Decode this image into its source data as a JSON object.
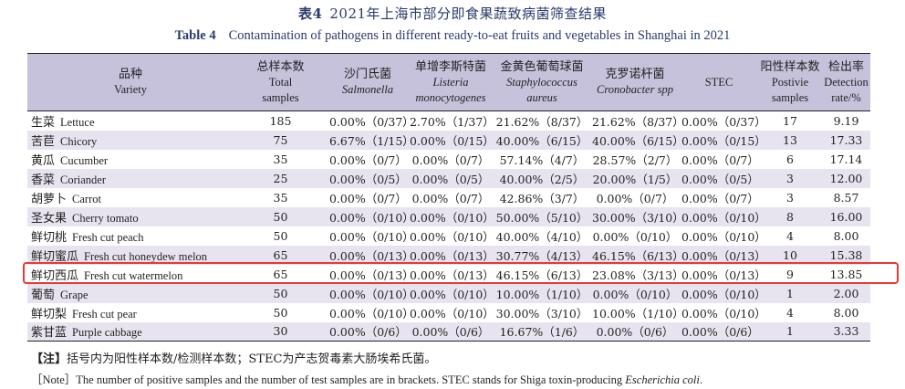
{
  "title_cn": {
    "label": "表4",
    "text": "2021年上海市部分即食果蔬致病菌筛查结果"
  },
  "title_en": {
    "label": "Table 4",
    "text": "Contamination of pathogens in different ready-to-eat fruits and vegetables in Shanghai in 2021"
  },
  "headers": {
    "variety": {
      "cn": "品种",
      "en": "Variety"
    },
    "total": {
      "cn": "总样本数",
      "en1": "Total",
      "en2": "samples"
    },
    "salmonella": {
      "cn": "沙门氏菌",
      "en": "Salmonella"
    },
    "listeria": {
      "cn": "单增李斯特菌",
      "en1": "Listeria",
      "en2": "monocytogenes"
    },
    "staph": {
      "cn": "金黄色葡萄球菌",
      "en1": "Staphylococcus",
      "en2": "aureus"
    },
    "crono": {
      "cn": "克罗诺杆菌",
      "en": "Cronobacter spp"
    },
    "stec": {
      "en": "STEC"
    },
    "positive": {
      "cn": "阳性样本数",
      "en1": "Postivie",
      "en2": "samples"
    },
    "rate": {
      "cn": "检出率",
      "en1": "Detection",
      "en2": "rate/%"
    }
  },
  "rows": [
    {
      "cn": "生菜",
      "en": "Lettuce",
      "total": "185",
      "salmonella": "0.00%（0/37）",
      "listeria": "2.70%（1/37）",
      "staph": "21.62%（8/37）",
      "crono": "21.62%（8/37）",
      "stec": "0.00%（0/37）",
      "positive": "17",
      "rate": "9.19"
    },
    {
      "cn": "苦苣",
      "en": "Chicory",
      "total": "75",
      "salmonella": "6.67%（1/15）",
      "listeria": "0.00%（0/15）",
      "staph": "40.00%（6/15）",
      "crono": "40.00%（6/15）",
      "stec": "0.00%（0/15）",
      "positive": "13",
      "rate": "17.33"
    },
    {
      "cn": "黄瓜",
      "en": "Cucumber",
      "total": "35",
      "salmonella": "0.00%（0/7）",
      "listeria": "0.00%（0/7）",
      "staph": "57.14%（4/7）",
      "crono": "28.57%（2/7）",
      "stec": "0.00%（0/7）",
      "positive": "6",
      "rate": "17.14"
    },
    {
      "cn": "香菜",
      "en": "Coriander",
      "total": "25",
      "salmonella": "0.00%（0/5）",
      "listeria": "0.00%（0/5）",
      "staph": "40.00%（2/5）",
      "crono": "20.00%（1/5）",
      "stec": "0.00%（0/5）",
      "positive": "3",
      "rate": "12.00"
    },
    {
      "cn": "胡萝卜",
      "en": "Carrot",
      "total": "35",
      "salmonella": "0.00%（0/7）",
      "listeria": "0.00%（0/7）",
      "staph": "42.86%（3/7）",
      "crono": "0.00%（0/7）",
      "stec": "0.00%（0/7）",
      "positive": "3",
      "rate": "8.57"
    },
    {
      "cn": "圣女果",
      "en": "Cherry tomato",
      "total": "50",
      "salmonella": "0.00%（0/10）",
      "listeria": "0.00%（0/10）",
      "staph": "50.00%（5/10）",
      "crono": "30.00%（3/10）",
      "stec": "0.00%（0/10）",
      "positive": "8",
      "rate": "16.00"
    },
    {
      "cn": "鲜切桃",
      "en": "Fresh cut peach",
      "total": "50",
      "salmonella": "0.00%（0/10）",
      "listeria": "0.00%（0/10）",
      "staph": "40.00%（4/10）",
      "crono": "0.00%（0/10）",
      "stec": "0.00%（0/10）",
      "positive": "4",
      "rate": "8.00"
    },
    {
      "cn": "鲜切蜜瓜",
      "en": "Fresh cut honeydew melon",
      "total": "65",
      "salmonella": "0.00%（0/13）",
      "listeria": "0.00%（0/13）",
      "staph": "30.77%（4/13）",
      "crono": "46.15%（6/13）",
      "stec": "0.00%（0/13）",
      "positive": "10",
      "rate": "15.38"
    },
    {
      "cn": "鲜切西瓜",
      "en": "Fresh cut watermelon",
      "total": "65",
      "salmonella": "0.00%（0/13）",
      "listeria": "0.00%（0/13）",
      "staph": "46.15%（6/13）",
      "crono": "23.08%（3/13）",
      "stec": "0.00%（0/13）",
      "positive": "9",
      "rate": "13.85"
    },
    {
      "cn": "葡萄",
      "en": "Grape",
      "total": "50",
      "salmonella": "0.00%（0/10）",
      "listeria": "0.00%（0/10）",
      "staph": "10.00%（1/10）",
      "crono": "0.00%（0/10）",
      "stec": "0.00%（0/10）",
      "positive": "1",
      "rate": "2.00"
    },
    {
      "cn": "鲜切梨",
      "en": "Fresh cut pear",
      "total": "50",
      "salmonella": "0.00%（0/10）",
      "listeria": "0.00%（0/10）",
      "staph": "30.00%（3/10）",
      "crono": "10.00%（1/10）",
      "stec": "0.00%（0/10）",
      "positive": "4",
      "rate": "8.00"
    },
    {
      "cn": "紫甘蓝",
      "en": "Purple cabbage",
      "total": "30",
      "salmonella": "0.00%（0/6）",
      "listeria": "0.00%（0/6）",
      "staph": "16.67%（1/6）",
      "crono": "0.00%（0/6）",
      "stec": "0.00%（0/6）",
      "positive": "1",
      "rate": "3.33"
    }
  ],
  "note_cn": {
    "label": "【注】",
    "text": "括号内为阳性样本数/检测样本数；STEC为产志贺毒素大肠埃希氏菌。"
  },
  "note_en": {
    "text": "［Note］The number of positive samples and the number of test samples are in brackets. STEC stands for Shiga toxin-producing ",
    "italic": "Escherichia coli",
    "end": "."
  },
  "colors": {
    "header_bg": "#c6c2dc",
    "stripe_bg": "#e7e4f0",
    "title_color": "#2a3a6b",
    "highlight": "#e53935"
  }
}
